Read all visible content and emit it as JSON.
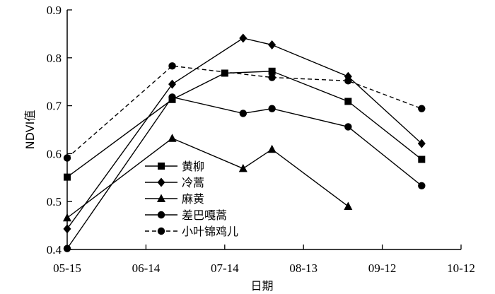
{
  "chart_data": {
    "type": "line",
    "xlabel": "日期",
    "ylabel": "NDVI值",
    "xticks": [
      "05-15",
      "06-14",
      "07-14",
      "08-13",
      "09-12",
      "10-12"
    ],
    "ylim": [
      0.4,
      0.9
    ],
    "yticks": [
      "0.4",
      "0.5",
      "0.6",
      "0.7",
      "0.8",
      "0.9"
    ],
    "grid": false,
    "legend_position": "bottom-left",
    "series": [
      {
        "name": "黄柳",
        "marker": "square",
        "dash": false,
        "x": [
          "05-15",
          "06-24",
          "07-14",
          "08-01",
          "08-30",
          "09-27"
        ],
        "y": [
          0.551,
          0.713,
          0.768,
          0.772,
          0.709,
          0.588
        ]
      },
      {
        "name": "冷蒿",
        "marker": "diamond",
        "dash": false,
        "x": [
          "05-15",
          "06-24",
          "07-21",
          "08-01",
          "08-30",
          "09-27"
        ],
        "y": [
          0.443,
          0.745,
          0.841,
          0.827,
          0.761,
          0.621
        ]
      },
      {
        "name": "麻黄",
        "marker": "triangle",
        "dash": false,
        "x": [
          "05-15",
          "06-24",
          "07-21",
          "08-01",
          "08-30"
        ],
        "y": [
          0.466,
          0.632,
          0.569,
          0.609,
          0.49
        ]
      },
      {
        "name": "差巴嘎蒿",
        "marker": "circle",
        "dash": false,
        "x": [
          "05-15",
          "06-24",
          "07-21",
          "08-01",
          "08-30",
          "09-27"
        ],
        "y": [
          0.402,
          0.718,
          0.684,
          0.694,
          0.656,
          0.533
        ]
      },
      {
        "name": "小叶锦鸡儿",
        "marker": "circle",
        "dash": true,
        "x": [
          "05-15",
          "06-24",
          "08-01",
          "08-30",
          "09-27"
        ],
        "y": [
          0.591,
          0.783,
          0.759,
          0.752,
          0.694
        ]
      }
    ]
  }
}
